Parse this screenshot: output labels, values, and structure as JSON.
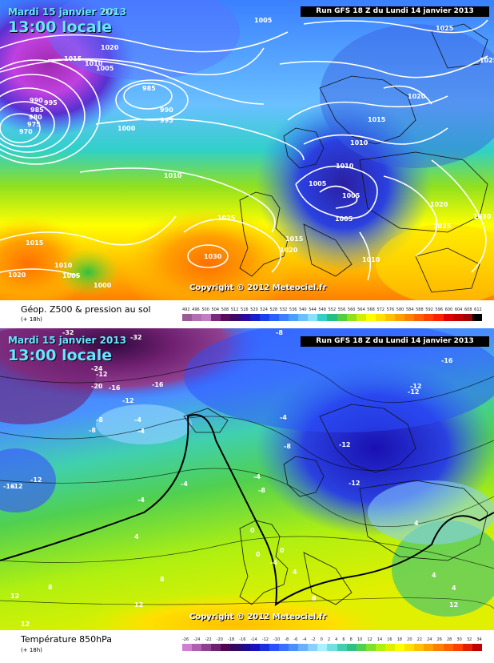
{
  "top_panel": {
    "date": "Mardi 15 janvier 2013",
    "time": "13:00 locale",
    "run": "Run GFS 18 Z du Lundi 14 janvier 2013",
    "copyright": "Copyright © 2012 Meteociel.fr",
    "legend_title": "Géop. Z500 & pression au sol",
    "legend_sub": "(+ 18h)",
    "scale_ticks": [
      "492",
      "496",
      "500",
      "504",
      "508",
      "512",
      "516",
      "520",
      "524",
      "528",
      "532",
      "536",
      "540",
      "544",
      "548",
      "552",
      "556",
      "560",
      "564",
      "568",
      "572",
      "576",
      "580",
      "584",
      "588",
      "592",
      "596",
      "600",
      "604",
      "608",
      "612"
    ],
    "scale_colors": [
      "#9a5a9a",
      "#b070b0",
      "#c080c0",
      "#7a2a7a",
      "#5a0a5a",
      "#3a0a6a",
      "#2a0aa0",
      "#1a20c8",
      "#1a40e8",
      "#2a60ff",
      "#3a80ff",
      "#4aa0ff",
      "#6ac0ff",
      "#8ae0ff",
      "#30d0c8",
      "#20c080",
      "#50d040",
      "#90e020",
      "#d0f000",
      "#ffff00",
      "#ffe000",
      "#ffc000",
      "#ffa000",
      "#ff8000",
      "#ff6000",
      "#ff4000",
      "#ff2000",
      "#e00000",
      "#c00000",
      "#a00000",
      "#000000"
    ],
    "isobar_labels": [
      "1025",
      "1005",
      "1020",
      "1015",
      "1010",
      "1005",
      "990",
      "995",
      "985",
      "980",
      "975",
      "970",
      "985",
      "990",
      "995",
      "1000",
      "1010",
      "1020",
      "1015",
      "1010",
      "1010",
      "1005",
      "1005",
      "1005",
      "1020",
      "1025",
      "1030",
      "1025",
      "1030",
      "1015",
      "1020",
      "1010",
      "1015",
      "1010",
      "1005",
      "1000",
      "1020",
      "1025",
      "1010",
      "1015"
    ]
  },
  "bottom_panel": {
    "date": "Mardi 15 janvier 2013",
    "time": "13:00 locale",
    "run": "Run GFS 18 Z du Lundi 14 janvier 2013",
    "copyright": "Copyright © 2012 Meteociel.fr",
    "legend_title": "Température 850hPa",
    "legend_sub": "(+ 18h)",
    "scale_ticks": [
      "-26",
      "-24",
      "-22",
      "-20",
      "-18",
      "-16",
      "-14",
      "-12",
      "-10",
      "-8",
      "-6",
      "-4",
      "-2",
      "0",
      "2",
      "4",
      "6",
      "8",
      "10",
      "12",
      "14",
      "16",
      "18",
      "20",
      "22",
      "24",
      "26",
      "28",
      "30",
      "32",
      "34"
    ],
    "scale_colors": [
      "#d080d0",
      "#b060b0",
      "#904090",
      "#702070",
      "#500850",
      "#300a60",
      "#1a0a90",
      "#1a10c0",
      "#1a30e0",
      "#2a50ff",
      "#3a70ff",
      "#4a90ff",
      "#6ab0ff",
      "#8ad0ff",
      "#aaf0ff",
      "#70e0e0",
      "#40d0b0",
      "#30c080",
      "#50d050",
      "#80e030",
      "#b0f010",
      "#e0f000",
      "#ffff00",
      "#ffe000",
      "#ffc000",
      "#ffa000",
      "#ff8000",
      "#ff6000",
      "#ff4000",
      "#e02000",
      "#c00000"
    ],
    "temp_labels": [
      "-32",
      "-32",
      "-8",
      "-24",
      "-20",
      "-16",
      "-16",
      "-12",
      "-8",
      "-8",
      "-4",
      "-4",
      "-16",
      "-12",
      "-4",
      "-12",
      "-12",
      "-8",
      "-4",
      "-12",
      "-16",
      "-12",
      "-4",
      "-4",
      "-8",
      "-12",
      "-12",
      "-4",
      "4",
      "0",
      "0",
      "4",
      "4",
      "0",
      "8",
      "4",
      "8",
      "12",
      "12",
      "12",
      "12",
      "8",
      "4"
    ]
  }
}
